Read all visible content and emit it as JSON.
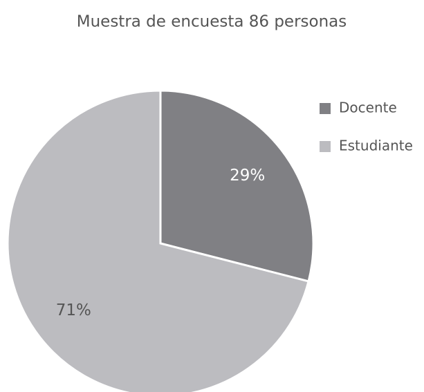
{
  "chart_data": {
    "type": "pie",
    "title": "Muestra de encuesta 86 personas",
    "categories": [
      "Docente",
      "Estudiante"
    ],
    "values": [
      29,
      71
    ],
    "value_labels": [
      "29%",
      "71%"
    ],
    "colors": [
      "#808084",
      "#bcbcc0"
    ],
    "label_colors": [
      "#ffffff",
      "#555555"
    ],
    "legend": "right"
  }
}
